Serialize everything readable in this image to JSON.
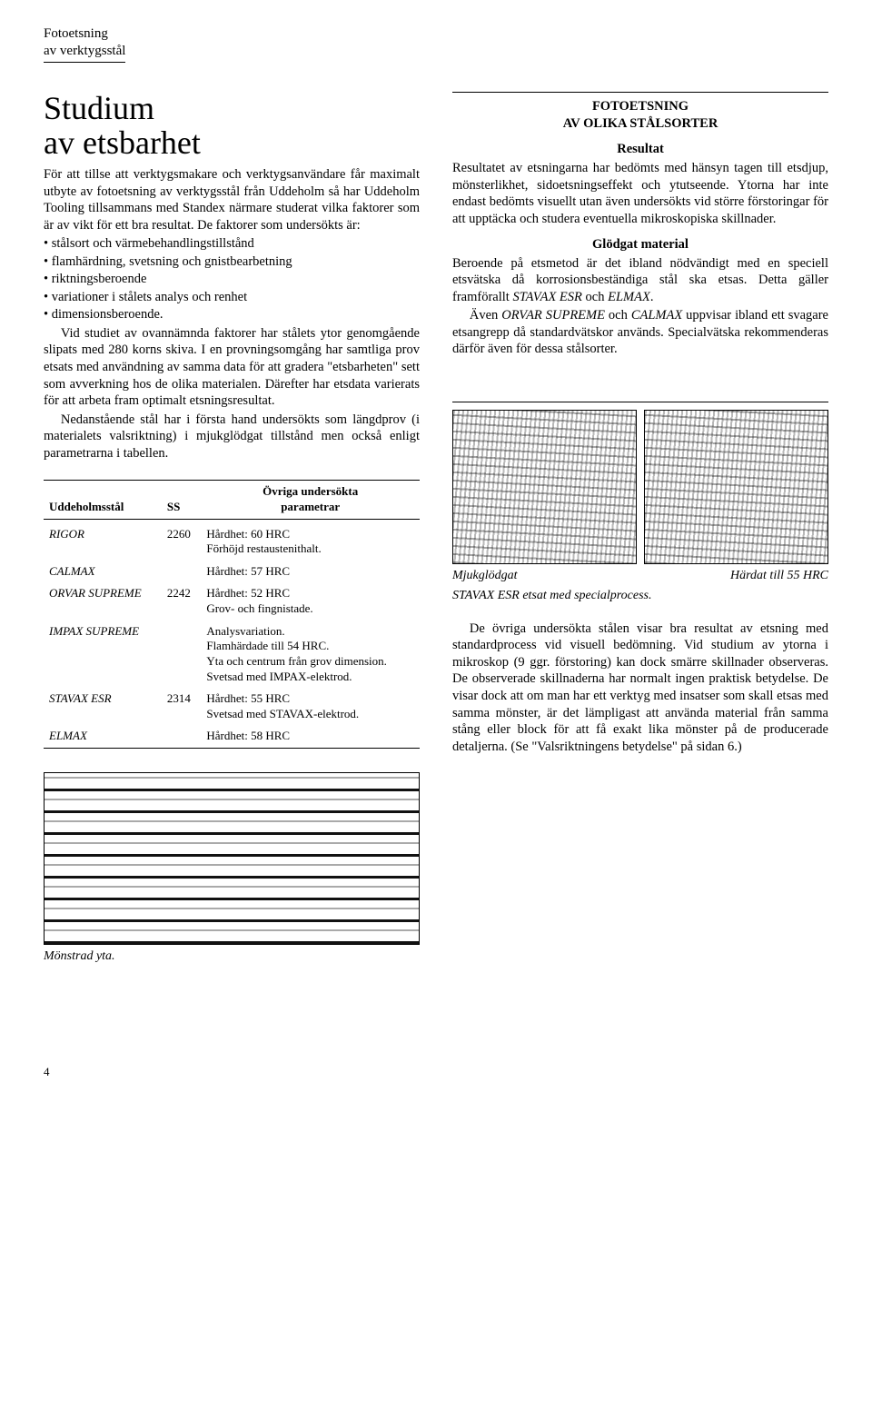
{
  "header": {
    "line1": "Fotoetsning",
    "line2": "av verktygsstål"
  },
  "left": {
    "title_l1": "Studium",
    "title_l2": "av etsbarhet",
    "intro": "För att tillse att verktygsmakare och verktygsanvändare får maximalt utbyte av fotoetsning av verktygsstål från Uddeholm så har Uddeholm Tooling tillsammans med Standex närmare studerat vilka faktorer som är av vikt för ett bra resultat. De faktorer som undersökts är:",
    "bullets": [
      "stålsort och värmebehandlingstillstånd",
      "flamhärdning, svetsning och gnistbearbetning",
      "riktningsberoende",
      "variationer i stålets analys och renhet",
      "dimensionsberoende."
    ],
    "p2": "Vid studiet av ovannämnda faktorer har stålets ytor genomgående slipats med 280 korns skiva. I en provningsomgång har samtliga prov etsats med användning av samma data för att gradera \"etsbarheten\" sett som avverkning hos de olika materialen. Därefter har etsdata varierats för att arbeta fram optimalt etsningsresultat.",
    "p3": "Nedanstående stål har i första hand undersökts som längdprov (i materialets valsriktning) i mjukglödgat tillstånd men också enligt parametrarna i tabellen."
  },
  "table": {
    "h1": "Uddeholmsstål",
    "h2": "SS",
    "h3_l1": "Övriga undersökta",
    "h3_l2": "parametrar",
    "rows": [
      {
        "name": "RIGOR",
        "ss": "2260",
        "params": "Hårdhet: 60 HRC\nFörhöjd restaustenithalt."
      },
      {
        "name": "CALMAX",
        "ss": "",
        "params": "Hårdhet: 57 HRC"
      },
      {
        "name": "ORVAR SUPREME",
        "ss": "2242",
        "params": "Hårdhet: 52 HRC\nGrov- och fingnistade."
      },
      {
        "name": "IMPAX SUPREME",
        "ss": "",
        "params": "Analysvariation.\nFlamhärdade till 54 HRC.\nYta och centrum från grov dimension.\nSvetsad med IMPAX-elektrod."
      },
      {
        "name": "STAVAX ESR",
        "ss": "2314",
        "params": "Hårdhet: 55 HRC\nSvetsad med STAVAX-elektrod."
      },
      {
        "name": "ELMAX",
        "ss": "",
        "params": "Hårdhet: 58 HRC"
      }
    ]
  },
  "right": {
    "title_l1": "FOTOETSNING",
    "title_l2": "AV OLIKA STÅLSORTER",
    "sub1": "Resultat",
    "p1": "Resultatet av etsningarna har bedömts med hänsyn tagen till etsdjup, mönsterlikhet, sidoetsningseffekt och ytutseende. Ytorna har inte endast bedömts visuellt utan även undersökts vid större förstoringar för att upptäcka och studera eventuella mikroskopiska skillnader.",
    "sub2": "Glödgat material",
    "p2": "Beroende på etsmetod är det ibland nödvändigt med en speciell etsvätska då korrosionsbeständiga stål ska etsas. Detta gäller framförallt STAVAX ESR och ELMAX.",
    "p3": "Även ORVAR SUPREME och CALMAX uppvisar ibland ett svagare etsangrepp då standardvätskor används. Specialvätska rekommenderas därför även för dessa stålsorter.",
    "fig_caption_left": "Mjukglödgat",
    "fig_caption_right": "Härdat till 55 HRC",
    "fig_caption_line2": "STAVAX ESR etsat med specialprocess.",
    "p4": "De övriga undersökta stålen visar bra resultat av etsning med standardprocess vid visuell bedömning. Vid studium av ytorna i mikroskop (9 ggr. förstoring) kan dock smärre skillnader observeras. De observerade skillnaderna har normalt ingen praktisk betydelse. De visar dock att om man har ett verktyg med insatser som skall etsas med samma mönster, är det lämpligast att använda material från samma stång eller block för att få exakt lika mönster på de producerade detaljerna. (Se \"Valsriktningens betydelse\" på sidan 6.)"
  },
  "bottom_caption": "Mönstrad yta.",
  "page_number": "4"
}
